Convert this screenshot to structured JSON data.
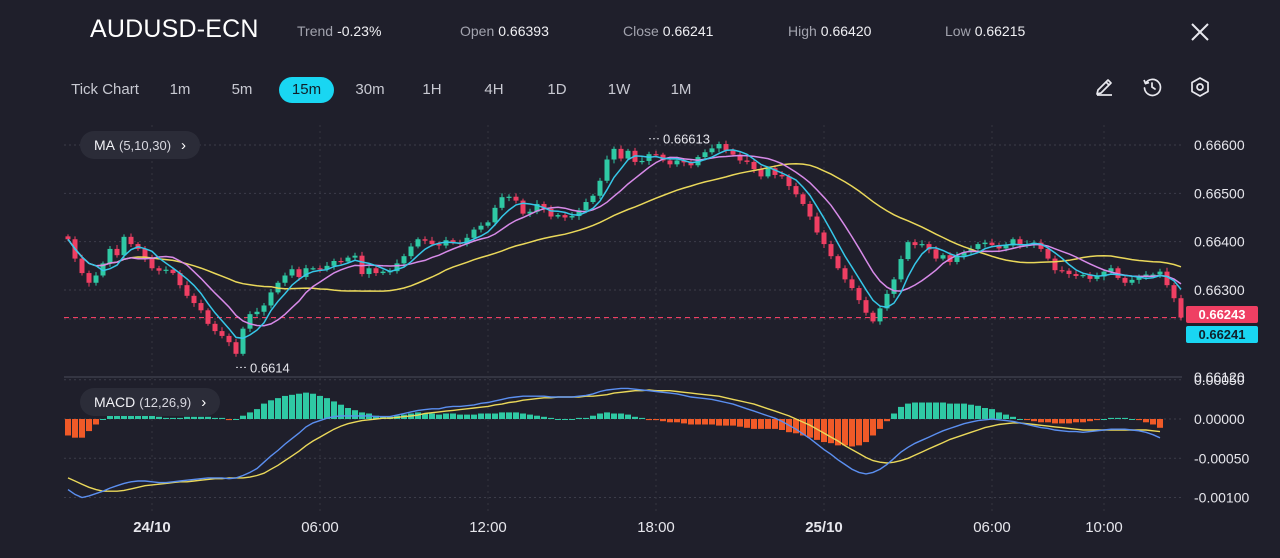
{
  "header": {
    "symbol": "AUDUSD-ECN",
    "trend_label": "Trend",
    "trend_value": "-0.23%",
    "open_label": "Open",
    "open_value": "0.66393",
    "close_label": "Close",
    "close_value": "0.66241",
    "high_label": "High",
    "high_value": "0.66420",
    "low_label": "Low",
    "low_value": "0.66215",
    "close_icon": "close-icon"
  },
  "timeframes": {
    "tick": "Tick Chart",
    "m1": "1m",
    "m5": "5m",
    "m15": "15m",
    "m30": "30m",
    "h1": "1H",
    "h4": "4H",
    "d1": "1D",
    "w1": "1W",
    "mn1": "1M",
    "active": "15m"
  },
  "tools": {
    "draw_icon": "pencil-icon",
    "timer_icon": "clock-refresh-icon",
    "settings_icon": "gear-hexagon-icon"
  },
  "indicators": {
    "ma_name": "MA",
    "ma_params": "(5,10,30)",
    "macd_name": "MACD",
    "macd_params": "(12,26,9)",
    "chevron": "›"
  },
  "price_tags": {
    "bid": "0.66243",
    "last": "0.66241"
  },
  "colors": {
    "background": "#1f1f2b",
    "up": "#2fc9a4",
    "down": "#ef3f63",
    "accent": "#19d6f2",
    "ma5": "#36c7e8",
    "ma10": "#d78ae8",
    "ma30": "#ead85a",
    "macd_line": "#5b8ff0",
    "signal_line": "#ead85a",
    "hist_pos": "#2fc9a4",
    "hist_neg": "#f05a28"
  },
  "chart_data": {
    "type": "candlestick",
    "price_axis": {
      "ticks": [
        "0.66600",
        "0.66500",
        "0.66400",
        "0.66300",
        "0.66120"
      ],
      "tick_values": [
        0.666,
        0.665,
        0.664,
        0.663,
        0.6612
      ],
      "ylim": [
        0.6612,
        0.6665
      ]
    },
    "macd_axis": {
      "ticks": [
        "0.00050",
        "0.00000",
        "-0.00050",
        "-0.00100"
      ],
      "tick_values": [
        0.0005,
        0.0,
        -0.0005,
        -0.001
      ],
      "ylim": [
        -0.0011,
        0.0005
      ]
    },
    "time_axis": {
      "labels": [
        "24/10",
        "06:00",
        "12:00",
        "18:00",
        "25/10",
        "06:00",
        "10:00"
      ],
      "bold": [
        true,
        false,
        false,
        false,
        true,
        false,
        false
      ],
      "label_bar_index": [
        12,
        36,
        60,
        84,
        108,
        132,
        148
      ]
    },
    "annotations": {
      "high_label": "0.66613",
      "high_value": 0.66613,
      "high_bar": 83,
      "low_label": "0.6614",
      "low_value": 0.6614,
      "low_bar": 24
    },
    "current_price": 0.66243,
    "close": [
      0.66405,
      0.66365,
      0.66335,
      0.66315,
      0.6633,
      0.66355,
      0.66385,
      0.66372,
      0.6641,
      0.66395,
      0.66385,
      0.66365,
      0.66345,
      0.6634,
      0.66342,
      0.66335,
      0.6631,
      0.66288,
      0.66273,
      0.66258,
      0.6623,
      0.66215,
      0.66205,
      0.66192,
      0.66168,
      0.6622,
      0.6625,
      0.66255,
      0.66268,
      0.66295,
      0.66315,
      0.6633,
      0.66343,
      0.66327,
      0.66345,
      0.66345,
      0.66343,
      0.6635,
      0.6636,
      0.66359,
      0.66367,
      0.66371,
      0.66333,
      0.66345,
      0.66335,
      0.66338,
      0.66339,
      0.66355,
      0.6637,
      0.6639,
      0.66405,
      0.66402,
      0.66395,
      0.66392,
      0.66403,
      0.66398,
      0.66395,
      0.66408,
      0.66425,
      0.66433,
      0.6644,
      0.6647,
      0.66492,
      0.66493,
      0.66485,
      0.66458,
      0.66462,
      0.66478,
      0.66468,
      0.66452,
      0.66455,
      0.6645,
      0.66453,
      0.66465,
      0.66482,
      0.66495,
      0.66526,
      0.6657,
      0.66592,
      0.66572,
      0.66588,
      0.66565,
      0.66567,
      0.66581,
      0.6658,
      0.66568,
      0.6656,
      0.66568,
      0.66564,
      0.66558,
      0.66575,
      0.66585,
      0.66593,
      0.66602,
      0.66589,
      0.6658,
      0.66568,
      0.66565,
      0.6655,
      0.66535,
      0.66552,
      0.66538,
      0.66535,
      0.66515,
      0.66498,
      0.66478,
      0.66452,
      0.66419,
      0.66395,
      0.6637,
      0.66345,
      0.66322,
      0.66304,
      0.66279,
      0.66253,
      0.66235,
      0.66262,
      0.66292,
      0.66322,
      0.66364,
      0.66399,
      0.66393,
      0.66395,
      0.66384,
      0.66365,
      0.66372,
      0.66358,
      0.66371,
      0.66378,
      0.66385,
      0.66395,
      0.66398,
      0.66393,
      0.66386,
      0.66392,
      0.66405,
      0.66392,
      0.66395,
      0.66398,
      0.66385,
      0.66365,
      0.66341,
      0.6634,
      0.66333,
      0.66329,
      0.66331,
      0.66323,
      0.66328,
      0.66338,
      0.66345,
      0.66325,
      0.66315,
      0.66321,
      0.66327,
      0.66332,
      0.66332,
      0.66338,
      0.6631,
      0.66283,
      0.66243
    ],
    "macd": [
      -0.0009,
      -0.00096,
      -0.001,
      -0.00098,
      -0.00095,
      -0.00092,
      -0.00088,
      -0.00085,
      -0.00082,
      -0.0008,
      -0.00079,
      -0.00079,
      -0.0008,
      -0.00081,
      -0.00081,
      -0.0008,
      -0.00079,
      -0.00078,
      -0.00077,
      -0.00076,
      -0.00075,
      -0.00075,
      -0.00075,
      -0.00076,
      -0.00075,
      -0.00072,
      -0.00068,
      -0.00063,
      -0.00055,
      -0.00047,
      -0.0004,
      -0.00032,
      -0.00025,
      -0.00018,
      -0.0001,
      -5e-05,
      -2e-05,
      1e-05,
      3e-05,
      4e-05,
      4e-05,
      4e-05,
      4e-05,
      4e-05,
      3e-05,
      3e-05,
      3e-05,
      5e-05,
      7e-05,
      9e-05,
      0.00011,
      0.00012,
      0.00013,
      0.00013,
      0.00015,
      0.00016,
      0.00016,
      0.00017,
      0.00018,
      0.0002,
      0.00021,
      0.00023,
      0.00025,
      0.00027,
      0.00028,
      0.00029,
      0.00029,
      0.00029,
      0.00029,
      0.00028,
      0.00028,
      0.00028,
      0.00028,
      0.00029,
      0.0003,
      0.00032,
      0.00035,
      0.00037,
      0.00038,
      0.00039,
      0.00039,
      0.00038,
      0.00037,
      0.00036,
      0.00035,
      0.00034,
      0.00033,
      0.00032,
      0.0003,
      0.00028,
      0.00027,
      0.00026,
      0.00025,
      0.00023,
      0.00021,
      0.00019,
      0.00016,
      0.00013,
      0.0001,
      7e-05,
      4e-05,
      1e-05,
      -3e-05,
      -8e-05,
      -0.00013,
      -0.00019,
      -0.00025,
      -0.00032,
      -0.00039,
      -0.00045,
      -0.00052,
      -0.00058,
      -0.00064,
      -0.00068,
      -0.0007,
      -0.00068,
      -0.00064,
      -0.00058,
      -0.0005,
      -0.00042,
      -0.00036,
      -0.00031,
      -0.00027,
      -0.00023,
      -0.00019,
      -0.00015,
      -0.00012,
      -9e-05,
      -6e-05,
      -4e-05,
      -2e-05,
      -1e-05,
      -0.0,
      -1e-05,
      -2e-05,
      -3e-05,
      -5e-05,
      -7e-05,
      -9e-05,
      -0.00011,
      -0.00012,
      -0.00014,
      -0.00015,
      -0.00016,
      -0.00016,
      -0.00017,
      -0.00016,
      -0.00015,
      -0.00014,
      -0.00013,
      -0.00013,
      -0.00013,
      -0.00014,
      -0.00015,
      -0.00017,
      -0.0002,
      -0.00024
    ],
    "signal": [
      -0.00075,
      -0.00079,
      -0.00083,
      -0.00087,
      -0.0009,
      -0.00092,
      -0.00092,
      -0.00092,
      -0.00091,
      -0.00089,
      -0.00087,
      -0.00085,
      -0.00084,
      -0.00083,
      -0.00082,
      -0.00081,
      -0.0008,
      -0.0008,
      -0.00079,
      -0.00078,
      -0.00077,
      -0.00076,
      -0.00076,
      -0.00075,
      -0.00075,
      -0.00075,
      -0.00074,
      -0.00072,
      -0.00069,
      -0.00064,
      -0.00059,
      -0.00053,
      -0.00047,
      -0.00041,
      -0.00034,
      -0.00028,
      -0.00023,
      -0.00018,
      -0.00013,
      -9e-05,
      -6e-05,
      -4e-05,
      -2e-05,
      -1e-05,
      -0.0,
      1e-05,
      1e-05,
      2e-05,
      3e-05,
      4e-05,
      5e-05,
      7e-05,
      8e-05,
      9e-05,
      0.0001,
      0.00011,
      0.00012,
      0.00013,
      0.00014,
      0.00015,
      0.00016,
      0.00018,
      0.00019,
      0.00021,
      0.00022,
      0.00024,
      0.00025,
      0.00026,
      0.00027,
      0.00027,
      0.00028,
      0.00028,
      0.00028,
      0.00028,
      0.00029,
      0.00029,
      0.0003,
      0.00031,
      0.00033,
      0.00034,
      0.00035,
      0.00036,
      0.00036,
      0.00037,
      0.00036,
      0.00036,
      0.00036,
      0.00035,
      0.00034,
      0.00033,
      0.00032,
      0.00031,
      0.0003,
      0.00029,
      0.00027,
      0.00025,
      0.00023,
      0.00021,
      0.00019,
      0.00016,
      0.00013,
      0.0001,
      7e-05,
      4e-05,
      0.0,
      -4e-05,
      -8e-05,
      -0.00013,
      -0.00018,
      -0.00023,
      -0.00028,
      -0.00034,
      -0.00039,
      -0.00044,
      -0.00049,
      -0.00053,
      -0.00055,
      -0.00056,
      -0.00055,
      -0.00053,
      -0.0005,
      -0.00046,
      -0.00042,
      -0.00038,
      -0.00034,
      -0.0003,
      -0.00026,
      -0.00023,
      -0.0002,
      -0.00017,
      -0.00014,
      -0.00011,
      -9e-05,
      -7e-05,
      -6e-05,
      -5e-05,
      -5e-05,
      -6e-05,
      -7e-05,
      -8e-05,
      -9e-05,
      -0.0001,
      -0.00011,
      -0.00012,
      -0.00013,
      -0.00014,
      -0.00014,
      -0.00014,
      -0.00014,
      -0.00014,
      -0.00014,
      -0.00014,
      -0.00014,
      -0.00014,
      -0.00014,
      -0.00015,
      -0.00016
    ]
  }
}
